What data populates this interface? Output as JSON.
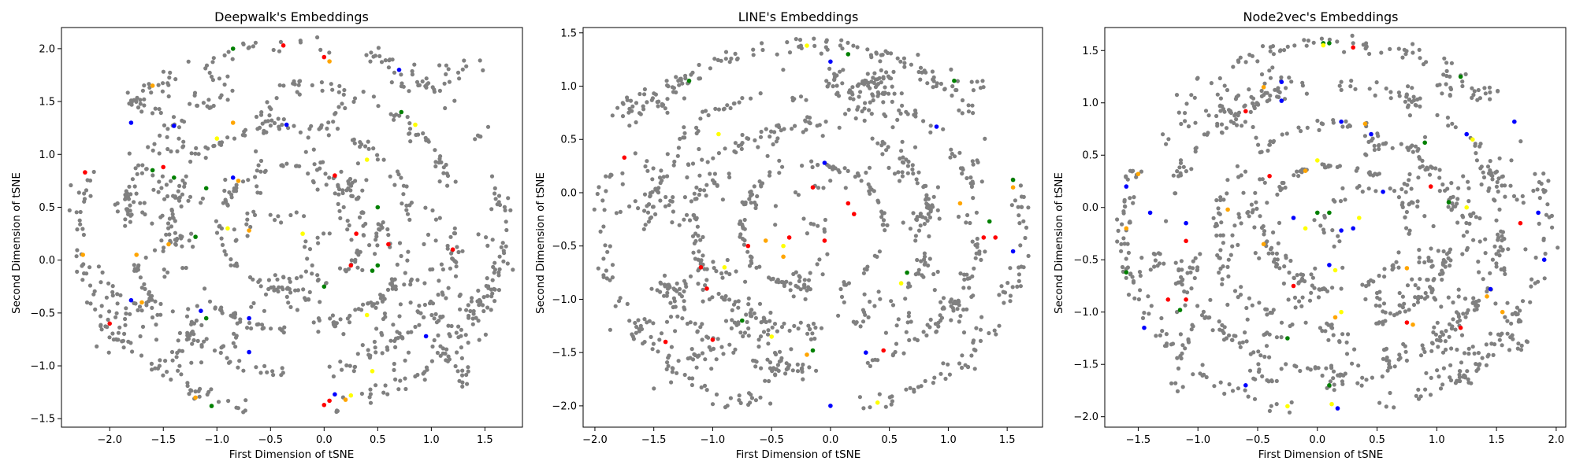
{
  "chart_data": [
    {
      "type": "scatter",
      "title": "Deepwalk's Embeddings",
      "xlabel": "First Dimension of tSNE",
      "ylabel": "Second Dimension of tSNE",
      "xlim": [
        -2.45,
        1.85
      ],
      "ylim": [
        -1.58,
        2.2
      ],
      "xticks": [
        -2.0,
        -1.5,
        -1.0,
        -0.5,
        0.0,
        0.5,
        1.0,
        1.5
      ],
      "xtick_labels": [
        "−2.0",
        "−1.5",
        "−1.0",
        "−0.5",
        "0.0",
        "0.5",
        "1.0",
        "1.5"
      ],
      "yticks": [
        -1.5,
        -1.0,
        -0.5,
        0.0,
        0.5,
        1.0,
        1.5,
        2.0
      ],
      "ytick_labels": [
        "−1.5",
        "−1.0",
        "−0.5",
        "0.0",
        "0.5",
        "1.0",
        "1.5",
        "2.0"
      ],
      "highlights": [
        {
          "x": -0.38,
          "y": 2.03,
          "color": "#ff0000"
        },
        {
          "x": -0.85,
          "y": 2.0,
          "color": "#008000"
        },
        {
          "x": -1.6,
          "y": 1.65,
          "color": "#ffa500"
        },
        {
          "x": -1.8,
          "y": 1.3,
          "color": "#0000ff"
        },
        {
          "x": -1.4,
          "y": 1.27,
          "color": "#0000ff"
        },
        {
          "x": -0.35,
          "y": 1.28,
          "color": "#0000ff"
        },
        {
          "x": -0.85,
          "y": 1.3,
          "color": "#ffa500"
        },
        {
          "x": -1.0,
          "y": 1.15,
          "color": "#ffff00"
        },
        {
          "x": 0.0,
          "y": 1.92,
          "color": "#ff0000"
        },
        {
          "x": 0.05,
          "y": 1.88,
          "color": "#ffa500"
        },
        {
          "x": 0.7,
          "y": 1.8,
          "color": "#0000ff"
        },
        {
          "x": 0.72,
          "y": 1.4,
          "color": "#008000"
        },
        {
          "x": 0.85,
          "y": 1.28,
          "color": "#ffff00"
        },
        {
          "x": -2.23,
          "y": 0.83,
          "color": "#ff0000"
        },
        {
          "x": -1.6,
          "y": 0.85,
          "color": "#008000"
        },
        {
          "x": -1.5,
          "y": 0.88,
          "color": "#ff0000"
        },
        {
          "x": -1.4,
          "y": 0.78,
          "color": "#008000"
        },
        {
          "x": -1.1,
          "y": 0.68,
          "color": "#008000"
        },
        {
          "x": -0.85,
          "y": 0.78,
          "color": "#0000ff"
        },
        {
          "x": -0.8,
          "y": 0.75,
          "color": "#ffa500"
        },
        {
          "x": 0.1,
          "y": 0.8,
          "color": "#ff0000"
        },
        {
          "x": 0.4,
          "y": 0.95,
          "color": "#ffff00"
        },
        {
          "x": 0.5,
          "y": 0.5,
          "color": "#008000"
        },
        {
          "x": -2.25,
          "y": 0.05,
          "color": "#ffa500"
        },
        {
          "x": -1.75,
          "y": 0.05,
          "color": "#ffa500"
        },
        {
          "x": -1.45,
          "y": 0.15,
          "color": "#ffa500"
        },
        {
          "x": -1.2,
          "y": 0.22,
          "color": "#008000"
        },
        {
          "x": -0.9,
          "y": 0.3,
          "color": "#ffff00"
        },
        {
          "x": -0.7,
          "y": 0.28,
          "color": "#ffa500"
        },
        {
          "x": -0.2,
          "y": 0.25,
          "color": "#ffff00"
        },
        {
          "x": 0.3,
          "y": 0.25,
          "color": "#ff0000"
        },
        {
          "x": 0.6,
          "y": 0.15,
          "color": "#ff0000"
        },
        {
          "x": 1.2,
          "y": 0.1,
          "color": "#ff0000"
        },
        {
          "x": 0.25,
          "y": -0.05,
          "color": "#ff0000"
        },
        {
          "x": 0.45,
          "y": -0.1,
          "color": "#008000"
        },
        {
          "x": 0.5,
          "y": -0.05,
          "color": "#008000"
        },
        {
          "x": 0.0,
          "y": -0.25,
          "color": "#008000"
        },
        {
          "x": -1.8,
          "y": -0.38,
          "color": "#0000ff"
        },
        {
          "x": -1.7,
          "y": -0.4,
          "color": "#ffa500"
        },
        {
          "x": -1.15,
          "y": -0.48,
          "color": "#0000ff"
        },
        {
          "x": -1.1,
          "y": -0.55,
          "color": "#008000"
        },
        {
          "x": -0.7,
          "y": -0.55,
          "color": "#0000ff"
        },
        {
          "x": -0.7,
          "y": -0.87,
          "color": "#0000ff"
        },
        {
          "x": 0.4,
          "y": -0.52,
          "color": "#ffff00"
        },
        {
          "x": -2.0,
          "y": -0.6,
          "color": "#ff0000"
        },
        {
          "x": 0.95,
          "y": -0.72,
          "color": "#0000ff"
        },
        {
          "x": 0.45,
          "y": -1.05,
          "color": "#ffff00"
        },
        {
          "x": -1.2,
          "y": -1.3,
          "color": "#ffa500"
        },
        {
          "x": -1.05,
          "y": -1.38,
          "color": "#008000"
        },
        {
          "x": 0.1,
          "y": -1.27,
          "color": "#0000ff"
        },
        {
          "x": 0.0,
          "y": -1.37,
          "color": "#ff0000"
        },
        {
          "x": 0.05,
          "y": -1.33,
          "color": "#ff0000"
        },
        {
          "x": 0.2,
          "y": -1.32,
          "color": "#ffa500"
        },
        {
          "x": 0.25,
          "y": -1.28,
          "color": "#ffff00"
        }
      ]
    },
    {
      "type": "scatter",
      "title": "LINE's Embeddings",
      "xlabel": "First Dimension of tSNE",
      "ylabel": "Second Dimension of tSNE",
      "xlim": [
        -2.1,
        1.8
      ],
      "ylim": [
        -2.2,
        1.55
      ],
      "xticks": [
        -2.0,
        -1.5,
        -1.0,
        -0.5,
        0.0,
        0.5,
        1.0,
        1.5
      ],
      "xtick_labels": [
        "−2.0",
        "−1.5",
        "−1.0",
        "−0.5",
        "0.0",
        "0.5",
        "1.0",
        "1.5"
      ],
      "yticks": [
        -2.0,
        -1.5,
        -1.0,
        -0.5,
        0.0,
        0.5,
        1.0,
        1.5
      ],
      "ytick_labels": [
        "−2.0",
        "−1.5",
        "−1.0",
        "−0.5",
        "0.0",
        "0.5",
        "1.0",
        "1.5"
      ],
      "highlights": [
        {
          "x": -1.2,
          "y": 1.05,
          "color": "#008000"
        },
        {
          "x": -0.2,
          "y": 1.38,
          "color": "#ffff00"
        },
        {
          "x": 0.0,
          "y": 1.23,
          "color": "#0000ff"
        },
        {
          "x": 0.15,
          "y": 1.3,
          "color": "#008000"
        },
        {
          "x": 1.05,
          "y": 1.05,
          "color": "#008000"
        },
        {
          "x": -0.95,
          "y": 0.55,
          "color": "#ffff00"
        },
        {
          "x": 0.9,
          "y": 0.62,
          "color": "#0000ff"
        },
        {
          "x": -1.75,
          "y": 0.33,
          "color": "#ff0000"
        },
        {
          "x": -0.05,
          "y": 0.28,
          "color": "#0000ff"
        },
        {
          "x": -0.15,
          "y": 0.05,
          "color": "#ff0000"
        },
        {
          "x": 0.15,
          "y": -0.1,
          "color": "#ff0000"
        },
        {
          "x": 0.2,
          "y": -0.2,
          "color": "#ff0000"
        },
        {
          "x": 1.55,
          "y": 0.12,
          "color": "#008000"
        },
        {
          "x": 1.55,
          "y": 0.05,
          "color": "#ffa500"
        },
        {
          "x": 1.1,
          "y": -0.1,
          "color": "#ffa500"
        },
        {
          "x": 1.35,
          "y": -0.27,
          "color": "#008000"
        },
        {
          "x": 1.3,
          "y": -0.42,
          "color": "#ff0000"
        },
        {
          "x": 1.4,
          "y": -0.42,
          "color": "#ff0000"
        },
        {
          "x": 1.55,
          "y": -0.55,
          "color": "#0000ff"
        },
        {
          "x": -0.7,
          "y": -0.5,
          "color": "#ff0000"
        },
        {
          "x": -0.55,
          "y": -0.45,
          "color": "#ffa500"
        },
        {
          "x": -0.4,
          "y": -0.5,
          "color": "#ffff00"
        },
        {
          "x": -0.35,
          "y": -0.42,
          "color": "#ff0000"
        },
        {
          "x": -0.05,
          "y": -0.45,
          "color": "#ff0000"
        },
        {
          "x": -0.4,
          "y": -0.6,
          "color": "#ffa500"
        },
        {
          "x": -0.9,
          "y": -0.7,
          "color": "#ffff00"
        },
        {
          "x": -1.1,
          "y": -0.7,
          "color": "#ff0000"
        },
        {
          "x": -1.05,
          "y": -0.9,
          "color": "#ff0000"
        },
        {
          "x": 0.65,
          "y": -0.75,
          "color": "#008000"
        },
        {
          "x": 0.6,
          "y": -0.85,
          "color": "#ffff00"
        },
        {
          "x": -0.75,
          "y": -1.2,
          "color": "#008000"
        },
        {
          "x": -0.5,
          "y": -1.35,
          "color": "#ffff00"
        },
        {
          "x": -1.0,
          "y": -1.38,
          "color": "#ff0000"
        },
        {
          "x": -1.4,
          "y": -1.4,
          "color": "#ff0000"
        },
        {
          "x": -0.2,
          "y": -1.52,
          "color": "#ffa500"
        },
        {
          "x": -0.15,
          "y": -1.48,
          "color": "#008000"
        },
        {
          "x": 0.3,
          "y": -1.5,
          "color": "#0000ff"
        },
        {
          "x": 0.45,
          "y": -1.48,
          "color": "#ff0000"
        },
        {
          "x": 0.0,
          "y": -2.0,
          "color": "#0000ff"
        },
        {
          "x": 0.4,
          "y": -1.97,
          "color": "#ffff00"
        }
      ]
    },
    {
      "type": "scatter",
      "title": "Node2vec's Embeddings",
      "xlabel": "First Dimension of tSNE",
      "ylabel": "Second Dimension of tSNE",
      "xlim": [
        -1.78,
        2.08
      ],
      "ylim": [
        -2.1,
        1.72
      ],
      "xticks": [
        -1.5,
        -1.0,
        -0.5,
        0.0,
        0.5,
        1.0,
        1.5,
        2.0
      ],
      "xtick_labels": [
        "−1.5",
        "−1.0",
        "−0.5",
        "0.0",
        "0.5",
        "1.0",
        "1.5",
        "2.0"
      ],
      "yticks": [
        -2.0,
        -1.5,
        -1.0,
        -0.5,
        0.0,
        0.5,
        1.0,
        1.5
      ],
      "ytick_labels": [
        "−2.0",
        "−1.5",
        "−1.0",
        "−0.5",
        "0.0",
        "0.5",
        "1.0",
        "1.5"
      ],
      "highlights": [
        {
          "x": 0.05,
          "y": 1.57,
          "color": "#008000"
        },
        {
          "x": 0.1,
          "y": 1.57,
          "color": "#008000"
        },
        {
          "x": 0.05,
          "y": 1.55,
          "color": "#ffff00"
        },
        {
          "x": 0.3,
          "y": 1.53,
          "color": "#ff0000"
        },
        {
          "x": 1.2,
          "y": 1.25,
          "color": "#008000"
        },
        {
          "x": -0.3,
          "y": 1.2,
          "color": "#0000ff"
        },
        {
          "x": -0.45,
          "y": 1.15,
          "color": "#ffa500"
        },
        {
          "x": -0.3,
          "y": 1.02,
          "color": "#0000ff"
        },
        {
          "x": -0.6,
          "y": 0.92,
          "color": "#ff0000"
        },
        {
          "x": 0.4,
          "y": 0.8,
          "color": "#ffa500"
        },
        {
          "x": 0.45,
          "y": 0.7,
          "color": "#0000ff"
        },
        {
          "x": 0.2,
          "y": 0.82,
          "color": "#0000ff"
        },
        {
          "x": 0.9,
          "y": 0.62,
          "color": "#008000"
        },
        {
          "x": 1.25,
          "y": 0.7,
          "color": "#0000ff"
        },
        {
          "x": 1.3,
          "y": 0.65,
          "color": "#ffff00"
        },
        {
          "x": 1.65,
          "y": 0.82,
          "color": "#0000ff"
        },
        {
          "x": -1.5,
          "y": 0.32,
          "color": "#ffa500"
        },
        {
          "x": -0.4,
          "y": 0.3,
          "color": "#ff0000"
        },
        {
          "x": 0.0,
          "y": 0.45,
          "color": "#ffff00"
        },
        {
          "x": -0.1,
          "y": 0.35,
          "color": "#ffa500"
        },
        {
          "x": 0.55,
          "y": 0.15,
          "color": "#0000ff"
        },
        {
          "x": 0.95,
          "y": 0.2,
          "color": "#ff0000"
        },
        {
          "x": 1.1,
          "y": 0.05,
          "color": "#008000"
        },
        {
          "x": 1.25,
          "y": 0.0,
          "color": "#ffff00"
        },
        {
          "x": -1.6,
          "y": 0.2,
          "color": "#0000ff"
        },
        {
          "x": -1.6,
          "y": -0.2,
          "color": "#ffa500"
        },
        {
          "x": -1.4,
          "y": -0.05,
          "color": "#0000ff"
        },
        {
          "x": -1.1,
          "y": -0.15,
          "color": "#0000ff"
        },
        {
          "x": -1.1,
          "y": -0.32,
          "color": "#ff0000"
        },
        {
          "x": -0.75,
          "y": -0.02,
          "color": "#ffa500"
        },
        {
          "x": -0.2,
          "y": -0.1,
          "color": "#0000ff"
        },
        {
          "x": 0.0,
          "y": -0.05,
          "color": "#008000"
        },
        {
          "x": 0.1,
          "y": -0.05,
          "color": "#008000"
        },
        {
          "x": -0.1,
          "y": -0.2,
          "color": "#ffff00"
        },
        {
          "x": 0.2,
          "y": -0.22,
          "color": "#0000ff"
        },
        {
          "x": 0.3,
          "y": -0.2,
          "color": "#0000ff"
        },
        {
          "x": 0.35,
          "y": -0.1,
          "color": "#ffff00"
        },
        {
          "x": -0.45,
          "y": -0.35,
          "color": "#ffa500"
        },
        {
          "x": 1.7,
          "y": -0.15,
          "color": "#ff0000"
        },
        {
          "x": 1.85,
          "y": -0.05,
          "color": "#0000ff"
        },
        {
          "x": 1.9,
          "y": -0.5,
          "color": "#0000ff"
        },
        {
          "x": 0.1,
          "y": -0.55,
          "color": "#0000ff"
        },
        {
          "x": 0.15,
          "y": -0.6,
          "color": "#ffff00"
        },
        {
          "x": 0.75,
          "y": -0.58,
          "color": "#ffa500"
        },
        {
          "x": -1.6,
          "y": -0.62,
          "color": "#008000"
        },
        {
          "x": -0.2,
          "y": -0.75,
          "color": "#ff0000"
        },
        {
          "x": -1.25,
          "y": -0.88,
          "color": "#ff0000"
        },
        {
          "x": -1.1,
          "y": -0.88,
          "color": "#ff0000"
        },
        {
          "x": -1.15,
          "y": -0.98,
          "color": "#008000"
        },
        {
          "x": 1.45,
          "y": -0.78,
          "color": "#0000ff"
        },
        {
          "x": 1.42,
          "y": -0.85,
          "color": "#ffa500"
        },
        {
          "x": 1.55,
          "y": -1.0,
          "color": "#ffa500"
        },
        {
          "x": 0.15,
          "y": -1.05,
          "color": "#ffa500"
        },
        {
          "x": 0.2,
          "y": -1.0,
          "color": "#ffff00"
        },
        {
          "x": -0.25,
          "y": -1.25,
          "color": "#008000"
        },
        {
          "x": 0.75,
          "y": -1.1,
          "color": "#ff0000"
        },
        {
          "x": 0.8,
          "y": -1.12,
          "color": "#ffa500"
        },
        {
          "x": 1.2,
          "y": -1.15,
          "color": "#ff0000"
        },
        {
          "x": -1.45,
          "y": -1.15,
          "color": "#0000ff"
        },
        {
          "x": -0.6,
          "y": -1.7,
          "color": "#0000ff"
        },
        {
          "x": 0.1,
          "y": -1.7,
          "color": "#008000"
        },
        {
          "x": 0.12,
          "y": -1.88,
          "color": "#ffff00"
        },
        {
          "x": 0.17,
          "y": -1.92,
          "color": "#0000ff"
        },
        {
          "x": -0.25,
          "y": -1.9,
          "color": "#ffff00"
        }
      ]
    }
  ]
}
